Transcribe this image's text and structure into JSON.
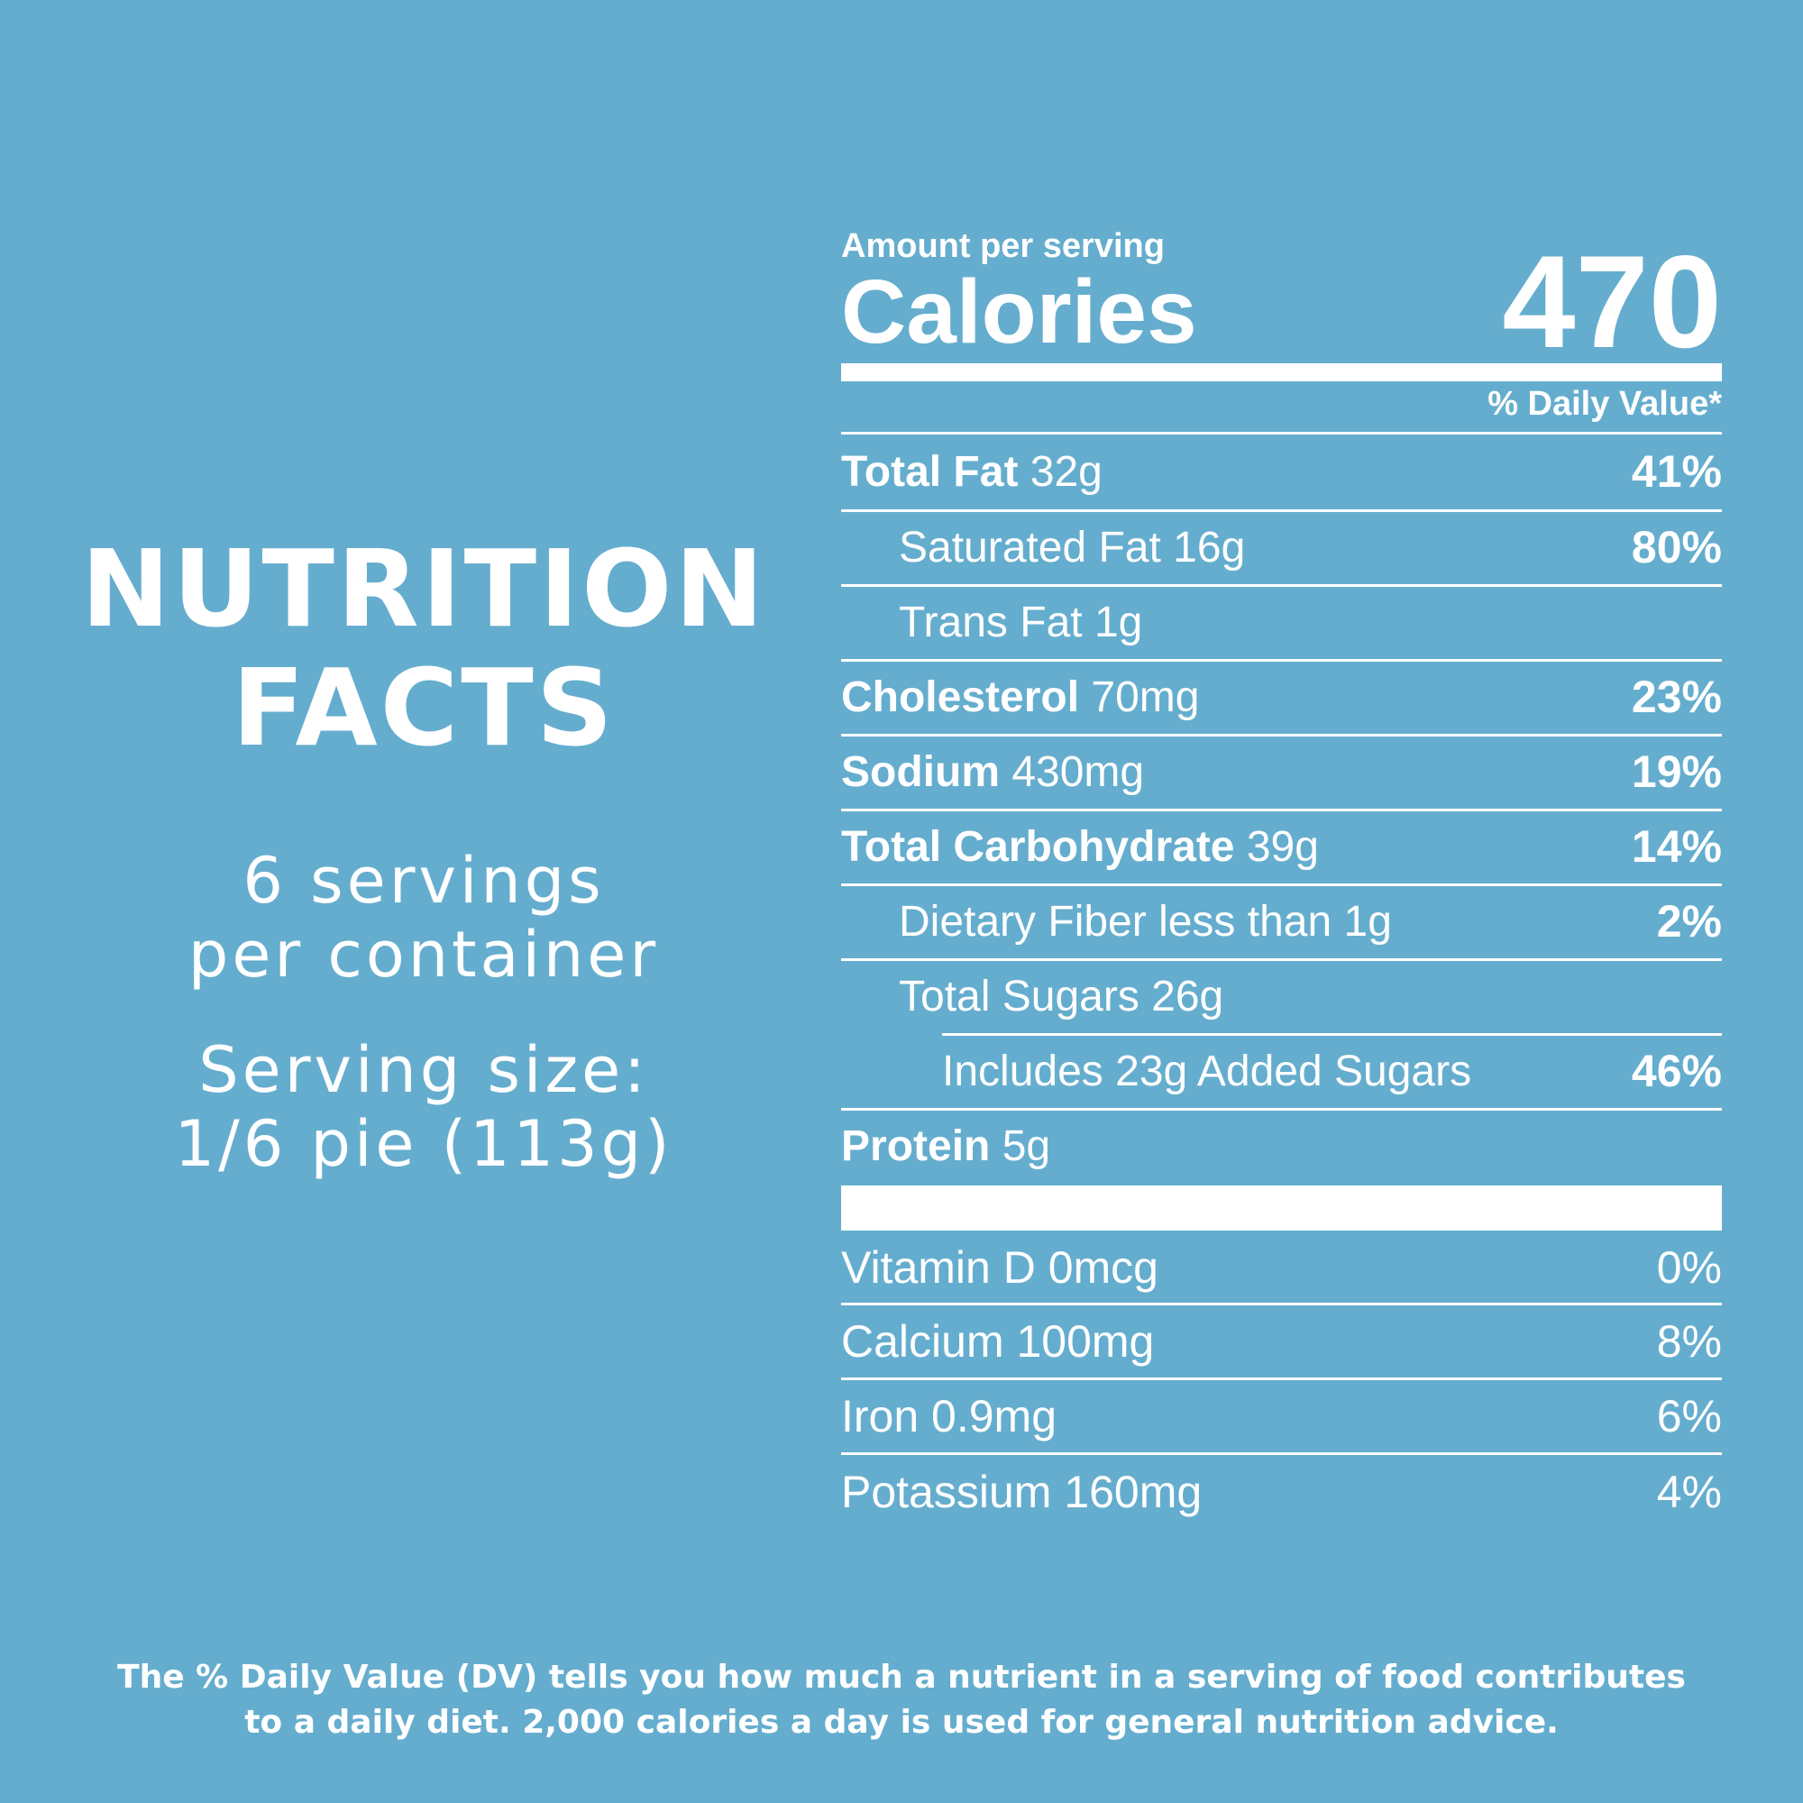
{
  "heading": {
    "line1": "NUTRITION",
    "line2": "FACTS"
  },
  "servings": {
    "line1": "6 servings",
    "line2": "per container"
  },
  "serving_size": {
    "line1": "Serving size:",
    "line2": "1/6 pie (113g)"
  },
  "label": {
    "amount_per_serving": "Amount per serving",
    "calories_label": "Calories",
    "calories_value": "470",
    "daily_value_header": "% Daily Value*"
  },
  "nutrients": [
    {
      "name": "Total Fat",
      "amount": "32g",
      "dv": "41%"
    },
    {
      "name": "Saturated Fat 16g",
      "amount": "",
      "dv": "80%"
    },
    {
      "name": "Trans Fat 1g",
      "amount": "",
      "dv": ""
    },
    {
      "name": "Cholesterol",
      "amount": "70mg",
      "dv": "23%"
    },
    {
      "name": "Sodium",
      "amount": "430mg",
      "dv": "19%"
    },
    {
      "name": "Total Carbohydrate",
      "amount": "39g",
      "dv": "14%"
    },
    {
      "name": "Dietary Fiber less than 1g",
      "amount": "",
      "dv": "2%"
    },
    {
      "name": "Total Sugars 26g",
      "amount": "",
      "dv": ""
    },
    {
      "name": "Includes 23g Added Sugars",
      "amount": "",
      "dv": "46%"
    },
    {
      "name": "Protein",
      "amount": "5g",
      "dv": ""
    }
  ],
  "vitamins": [
    {
      "name": "Vitamin D 0mcg",
      "dv": "0%"
    },
    {
      "name": "Calcium 100mg",
      "dv": "8%"
    },
    {
      "name": "Iron 0.9mg",
      "dv": "6%"
    },
    {
      "name": "Potassium 160mg",
      "dv": "4%"
    }
  ],
  "footnote": {
    "line1": "The % Daily Value (DV) tells you how much a nutrient in a serving of food contributes",
    "line2": "to a daily diet. 2,000 calories a day is used for general nutrition advice."
  },
  "colors": {
    "background": "#65adce",
    "foreground": "#ffffff"
  }
}
